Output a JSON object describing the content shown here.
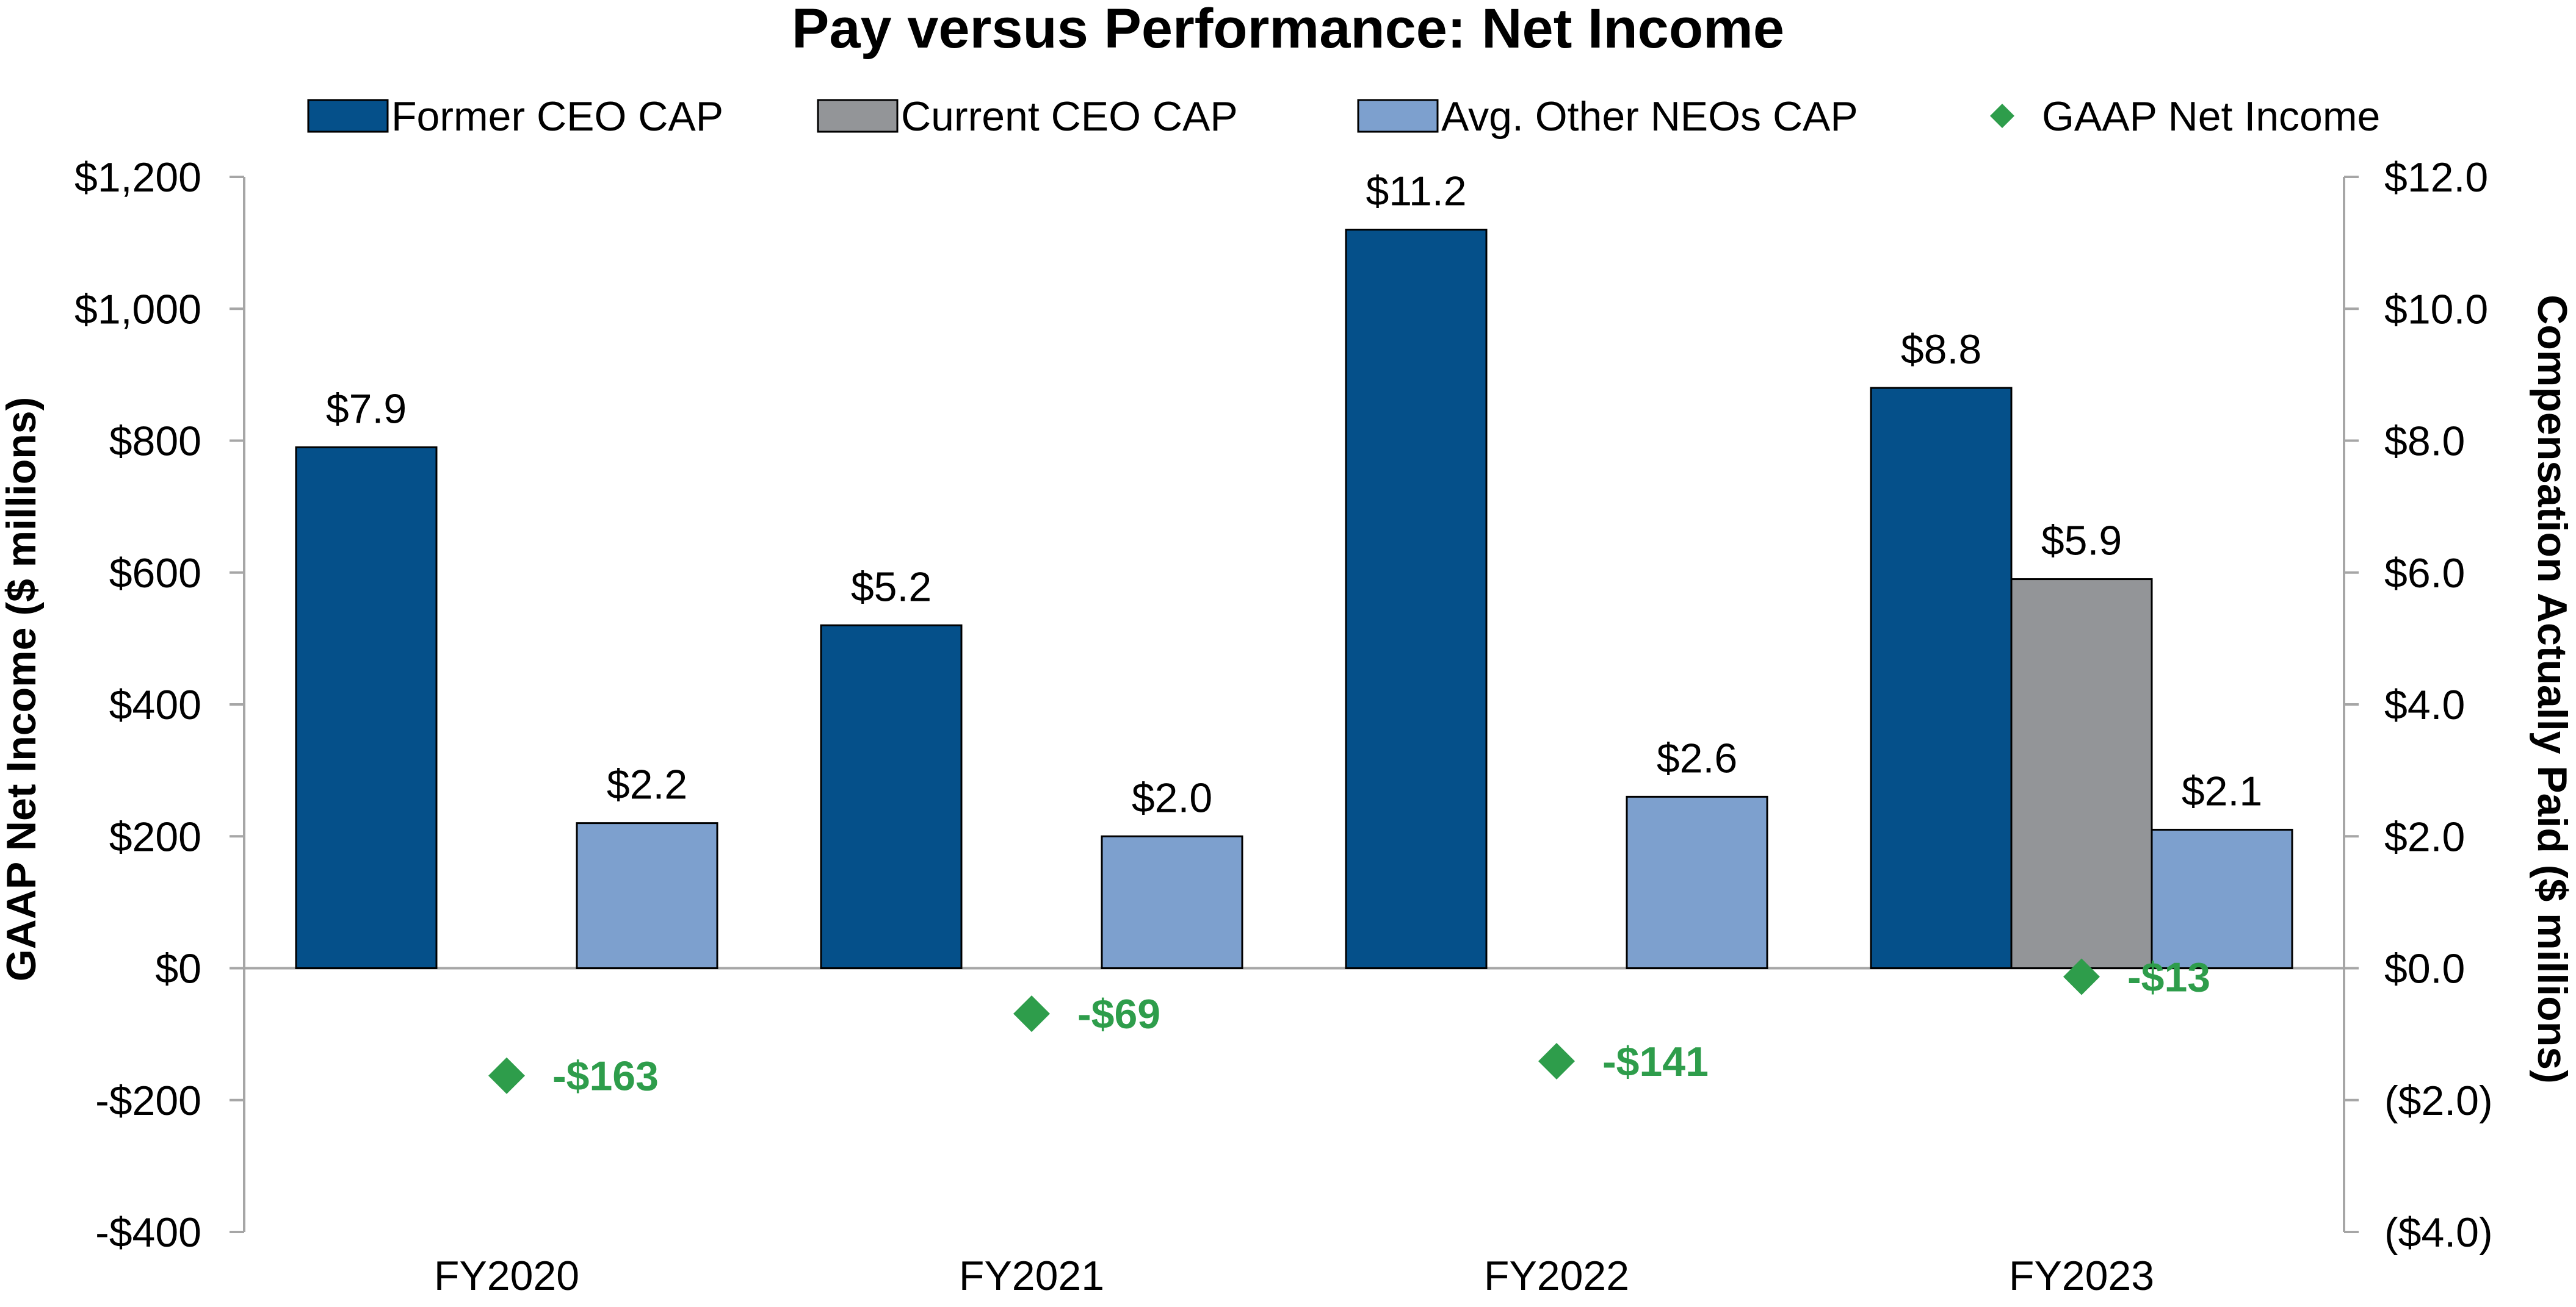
{
  "chart_data": {
    "type": "bar",
    "title": "Pay versus Performance: Net Income",
    "categories": [
      "FY2020",
      "FY2021",
      "FY2022",
      "FY2023"
    ],
    "left_axis": {
      "label": "GAAP Net Income ($ millions)",
      "range": [
        -400,
        1200
      ],
      "ticks": [
        -400,
        -200,
        0,
        200,
        400,
        600,
        800,
        1000,
        1200
      ],
      "tick_labels": [
        "-$400",
        "-$200",
        "$0",
        "$200",
        "$400",
        "$600",
        "$800",
        "$1,000",
        "$1,200"
      ]
    },
    "right_axis": {
      "label": "Compensation Actually Paid ($ millions)",
      "range": [
        -4,
        12
      ],
      "ticks": [
        -4,
        -2,
        0,
        2,
        4,
        6,
        8,
        10,
        12
      ],
      "tick_labels": [
        "($4.0)",
        "($2.0)",
        "$0.0",
        "$2.0",
        "$4.0",
        "$6.0",
        "$8.0",
        "$10.0",
        "$12.0"
      ]
    },
    "series": [
      {
        "name": "Former CEO CAP",
        "kind": "bar",
        "axis": "right",
        "color": "#05508A",
        "values": [
          7.9,
          5.2,
          11.2,
          8.8
        ],
        "labels": [
          "$7.9",
          "$5.2",
          "$11.2",
          "$8.8"
        ]
      },
      {
        "name": "Current CEO CAP",
        "kind": "bar",
        "axis": "right",
        "color": "#939598",
        "values": [
          null,
          null,
          null,
          5.9
        ],
        "labels": [
          "",
          "",
          "",
          "$5.9"
        ]
      },
      {
        "name": "Avg. Other NEOs CAP",
        "kind": "bar",
        "axis": "right",
        "color": "#7DA0CE",
        "values": [
          2.2,
          2.0,
          2.6,
          2.1
        ],
        "labels": [
          "$2.2",
          "$2.0",
          "$2.6",
          "$2.1"
        ]
      },
      {
        "name": "GAAP Net Income",
        "kind": "marker",
        "axis": "left",
        "color": "#2E9D4B",
        "values": [
          -163,
          -69,
          -141,
          -13
        ],
        "labels": [
          "-$163",
          "-$69",
          "-$141",
          "-$13"
        ]
      }
    ],
    "legend_position": "top",
    "grid": false
  }
}
